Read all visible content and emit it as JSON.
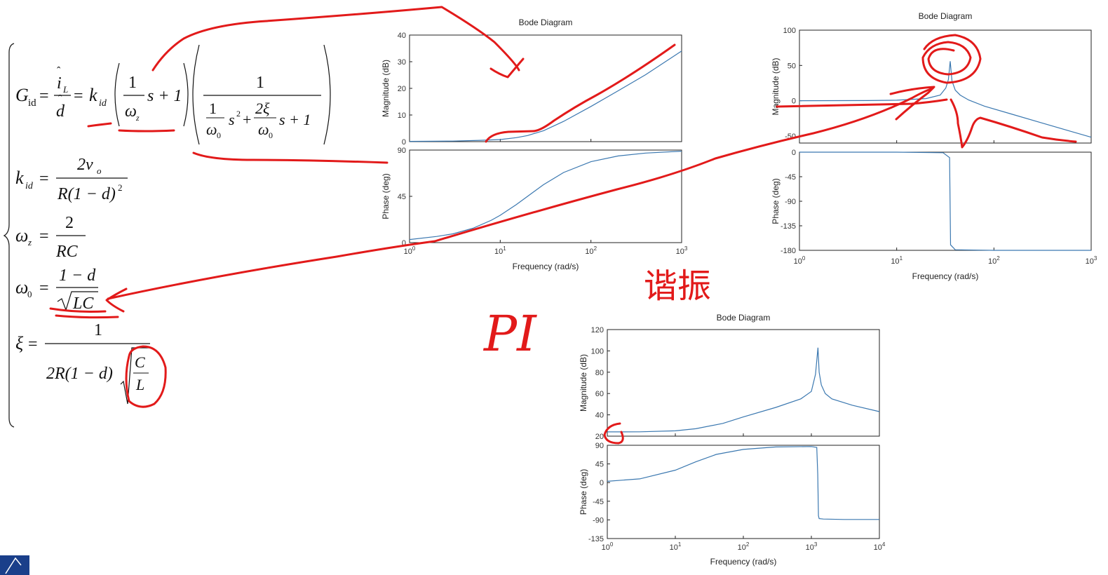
{
  "equations": {
    "gid_lhs": "G",
    "gid_sub": "id",
    "il_num": "i",
    "il_sub": "L",
    "d_den": "d",
    "kid": "k",
    "kid_sub": "id",
    "one": "1",
    "omega_z": "ω",
    "z_sub": "z",
    "s_plus_one": "s + 1",
    "omega0": "ω",
    "zero_sub": "0",
    "s_sq": "s",
    "two_xi": "2ξ",
    "kid_num": "2v",
    "kid_num_sub": "o",
    "kid_den": "R(1 − d)",
    "sq": "2",
    "wz_num": "2",
    "wz_den": "RC",
    "w0_num": "1 − d",
    "w0_den": "LC",
    "xi": "ξ",
    "xi_num": "1",
    "xi_den": "2R(1 − d)",
    "xi_c": "C",
    "xi_l": "L",
    "eq": "="
  },
  "annotations": {
    "pi_text": "PI",
    "zhu_text": "谐振"
  },
  "colors": {
    "curve": "#3b78b0",
    "ink": "#e21a1a"
  },
  "chart_data": [
    {
      "type": "line",
      "title": "Bode Diagram",
      "xlabel": "Frequency (rad/s)",
      "xscale": "log",
      "xlim": [
        1,
        1000
      ],
      "x_ticks": [
        {
          "value": 1,
          "base": "10",
          "exp": "0"
        },
        {
          "value": 10,
          "base": "10",
          "exp": "1"
        },
        {
          "value": 100,
          "base": "10",
          "exp": "2"
        },
        {
          "value": 1000,
          "base": "10",
          "exp": "3"
        }
      ],
      "panels": [
        {
          "ylabel": "Magnitude (dB)",
          "ylim": [
            0,
            40
          ],
          "yticks": [
            "0",
            "10",
            "20",
            "30",
            "40"
          ],
          "series": [
            {
              "x": [
                1,
                3,
                6,
                10,
                15,
                20,
                30,
                50,
                100,
                200,
                400,
                1000
              ],
              "y": [
                0.1,
                0.2,
                0.5,
                0.8,
                1.5,
                2.3,
                4.1,
                7.6,
                13.2,
                19.1,
                25.1,
                34
              ]
            }
          ]
        },
        {
          "ylabel": "Phase (deg)",
          "ylim": [
            0,
            90
          ],
          "yticks": [
            "0",
            "45",
            "90"
          ],
          "series": [
            {
              "x": [
                1,
                2,
                3,
                5,
                8,
                10,
                15,
                20,
                30,
                50,
                100,
                200,
                400,
                1000
              ],
              "y": [
                3,
                6,
                8.5,
                14,
                21.8,
                26.6,
                36.9,
                45,
                56.3,
                68.2,
                78.7,
                84.3,
                87.1,
                88.9
              ]
            }
          ]
        }
      ]
    },
    {
      "type": "line",
      "title": "Bode Diagram",
      "xlabel": "Frequency (rad/s)",
      "xscale": "log",
      "xlim": [
        1,
        1000
      ],
      "x_ticks": [
        {
          "value": 1,
          "base": "10",
          "exp": "0"
        },
        {
          "value": 10,
          "base": "10",
          "exp": "1"
        },
        {
          "value": 100,
          "base": "10",
          "exp": "2"
        },
        {
          "value": 1000,
          "base": "10",
          "exp": "3"
        }
      ],
      "panels": [
        {
          "ylabel": "Magnitude (dB)",
          "ylim": [
            -60,
            100
          ],
          "yticks": [
            "-50",
            "0",
            "50",
            "100"
          ],
          "series": [
            {
              "x": [
                1,
                5,
                10,
                20,
                28,
                32,
                34,
                35.5,
                37,
                40,
                45,
                55,
                80,
                150,
                300,
                600,
                1000
              ],
              "y": [
                0,
                0.2,
                0.7,
                3,
                8,
                18,
                30,
                56,
                28,
                15,
                8,
                1,
                -7.7,
                -18.8,
                -30.9,
                -42.9,
                -51.8
              ]
            }
          ]
        },
        {
          "ylabel": "Phase (deg)",
          "ylim": [
            -180,
            0
          ],
          "yticks": [
            "-180",
            "-135",
            "-90",
            "-45",
            "0"
          ],
          "series": [
            {
              "x": [
                1,
                10,
                30,
                35,
                35.4,
                35.8,
                40,
                100,
                1000
              ],
              "y": [
                0,
                0,
                -1,
                -10,
                -90,
                -170,
                -179,
                -180,
                -180
              ]
            }
          ]
        }
      ]
    },
    {
      "type": "line",
      "title": "Bode Diagram",
      "xlabel": "Frequency (rad/s)",
      "xscale": "log",
      "xlim": [
        1,
        10000
      ],
      "x_ticks": [
        {
          "value": 1,
          "base": "10",
          "exp": "0"
        },
        {
          "value": 10,
          "base": "10",
          "exp": "1"
        },
        {
          "value": 100,
          "base": "10",
          "exp": "2"
        },
        {
          "value": 1000,
          "base": "10",
          "exp": "3"
        },
        {
          "value": 10000,
          "base": "10",
          "exp": "4"
        }
      ],
      "panels": [
        {
          "ylabel": "Magnitude (dB)",
          "ylim": [
            20,
            120
          ],
          "yticks": [
            "20",
            "40",
            "60",
            "80",
            "100",
            "120"
          ],
          "series": [
            {
              "x": [
                1,
                3,
                10,
                20,
                50,
                100,
                300,
                700,
                1000,
                1150,
                1250,
                1300,
                1400,
                1600,
                2000,
                4000,
                10000
              ],
              "y": [
                24,
                24.1,
                25,
                27,
                32,
                38,
                47,
                55,
                62,
                78,
                103,
                80,
                68,
                60,
                55,
                49,
                43
              ]
            }
          ]
        },
        {
          "ylabel": "Phase (deg)",
          "ylim": [
            -135,
            90
          ],
          "yticks": [
            "-135",
            "-90",
            "-45",
            "0",
            "45",
            "90"
          ],
          "series": [
            {
              "x": [
                1,
                3,
                10,
                20,
                40,
                100,
                300,
                1000,
                1200,
                1240,
                1270,
                1300,
                1500,
                3000,
                10000
              ],
              "y": [
                3,
                9,
                30,
                50,
                68,
                80,
                86,
                87,
                85,
                20,
                -80,
                -87,
                -88,
                -89,
                -89
              ]
            }
          ]
        }
      ]
    }
  ]
}
